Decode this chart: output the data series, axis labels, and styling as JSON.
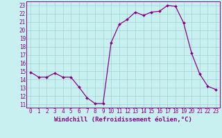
{
  "x": [
    0,
    1,
    2,
    3,
    4,
    5,
    6,
    7,
    8,
    9,
    10,
    11,
    12,
    13,
    14,
    15,
    16,
    17,
    18,
    19,
    20,
    21,
    22,
    23
  ],
  "y": [
    14.9,
    14.3,
    14.3,
    14.8,
    14.3,
    14.3,
    13.1,
    11.8,
    11.1,
    11.1,
    18.5,
    20.7,
    21.3,
    22.2,
    21.8,
    22.2,
    22.3,
    23.0,
    22.9,
    20.9,
    17.2,
    14.7,
    13.2,
    12.8
  ],
  "line_color": "#880088",
  "marker": "D",
  "markersize": 2.0,
  "linewidth": 0.9,
  "bg_color": "#c8f0f0",
  "grid_color": "#99cccc",
  "xlabel": "Windchill (Refroidissement éolien,°C)",
  "xlabel_fontsize": 6.5,
  "yticks": [
    11,
    12,
    13,
    14,
    15,
    16,
    17,
    18,
    19,
    20,
    21,
    22,
    23
  ],
  "xticks": [
    0,
    1,
    2,
    3,
    4,
    5,
    6,
    7,
    8,
    9,
    10,
    11,
    12,
    13,
    14,
    15,
    16,
    17,
    18,
    19,
    20,
    21,
    22,
    23
  ],
  "ylim": [
    10.6,
    23.5
  ],
  "xlim": [
    -0.5,
    23.5
  ],
  "tick_fontsize": 5.5,
  "tick_color": "#880088",
  "axis_color": "#880088",
  "spine_color": "#880088"
}
